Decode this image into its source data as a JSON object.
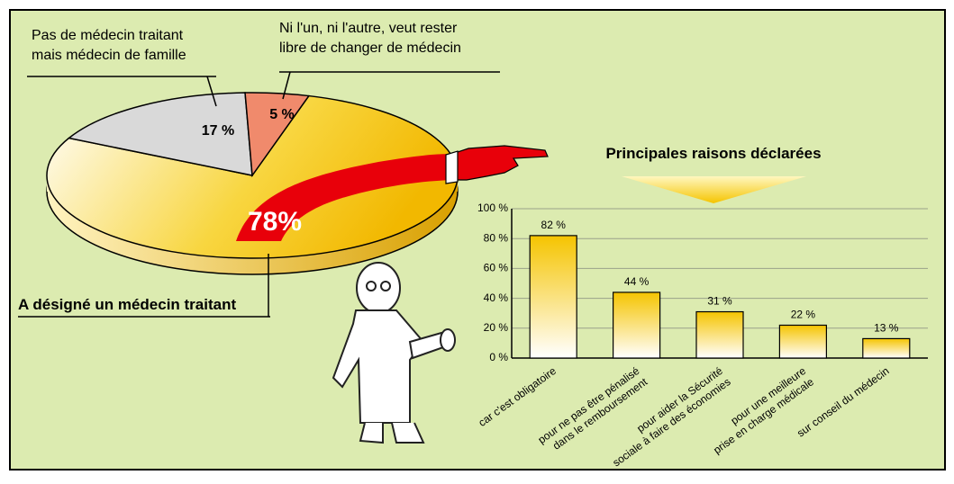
{
  "chart_data": [
    {
      "type": "pie",
      "categories": [
        "A désigné un médecin traitant",
        "Pas de médecin traitant\nmais médecin de famille",
        "Ni l'un, ni l'autre, veut rester\nlibre de changer de médecin"
      ],
      "values": [
        78,
        17,
        5
      ],
      "value_labels": [
        "78%",
        "17 %",
        "5 %"
      ],
      "colors": [
        "#f5c400",
        "#d9d9d9",
        "#f08a6c"
      ]
    },
    {
      "type": "bar",
      "title": "Principales raisons déclarées",
      "categories": [
        "car c'est obligatoire",
        "pour ne pas être pénalisé\ndans le remboursement",
        "pour aider la Sécurité\nsociale à faire des économies",
        "pour une meilleure\nprise en charge médicale",
        "sur conseil du médecin"
      ],
      "values": [
        82,
        44,
        31,
        22,
        13
      ],
      "value_labels": [
        "82 %",
        "44 %",
        "31 %",
        "22 %",
        "13 %"
      ],
      "color": "#f5c400",
      "ylim": [
        0,
        100
      ],
      "yticks": [
        {
          "value": 0,
          "label": "0 %"
        },
        {
          "value": 20,
          "label": "20 %"
        },
        {
          "value": 40,
          "label": "40 %"
        },
        {
          "value": 60,
          "label": "60 %"
        },
        {
          "value": 80,
          "label": "80 %"
        },
        {
          "value": 100,
          "label": "100 %"
        }
      ],
      "grid": true
    }
  ]
}
